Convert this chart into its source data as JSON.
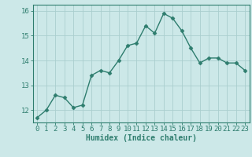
{
  "x": [
    0,
    1,
    2,
    3,
    4,
    5,
    6,
    7,
    8,
    9,
    10,
    11,
    12,
    13,
    14,
    15,
    16,
    17,
    18,
    19,
    20,
    21,
    22,
    23
  ],
  "y": [
    11.7,
    12.0,
    12.6,
    12.5,
    12.1,
    12.2,
    13.4,
    13.6,
    13.5,
    14.0,
    14.6,
    14.7,
    15.4,
    15.1,
    15.9,
    15.7,
    15.2,
    14.5,
    13.9,
    14.1,
    14.1,
    13.9,
    13.9,
    13.6
  ],
  "line_color": "#2e7d6e",
  "marker": "D",
  "markersize": 2.5,
  "linewidth": 1.0,
  "xlabel": "Humidex (Indice chaleur)",
  "xlim": [
    -0.5,
    23.5
  ],
  "ylim": [
    11.5,
    16.25
  ],
  "yticks": [
    12,
    13,
    14,
    15,
    16
  ],
  "xticks": [
    0,
    1,
    2,
    3,
    4,
    5,
    6,
    7,
    8,
    9,
    10,
    11,
    12,
    13,
    14,
    15,
    16,
    17,
    18,
    19,
    20,
    21,
    22,
    23
  ],
  "bg_color": "#cce8e8",
  "grid_color": "#aacece",
  "spine_color": "#2e7d6e",
  "tick_color": "#2e7d6e",
  "label_color": "#2e7d6e",
  "xlabel_fontsize": 7,
  "tick_fontsize": 6.5
}
